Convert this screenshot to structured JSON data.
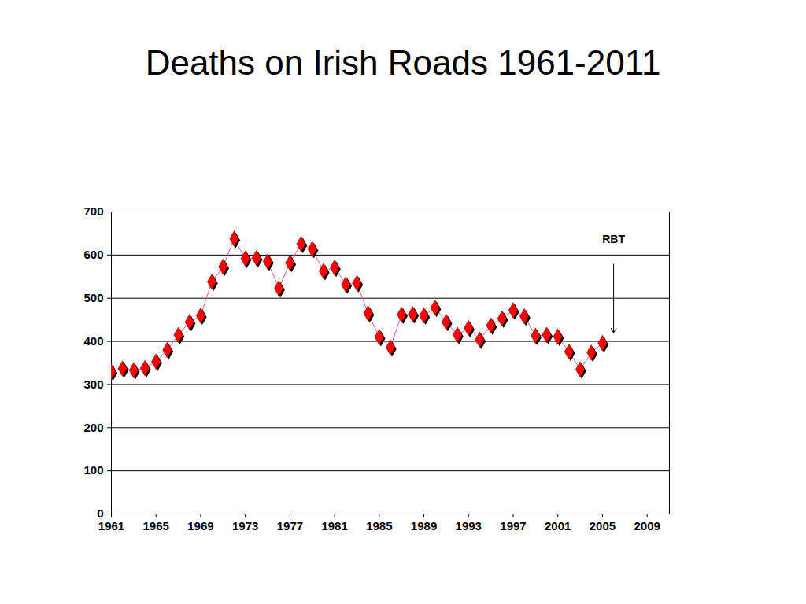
{
  "chart_data": {
    "type": "line",
    "title": "Deaths on Irish Roads 1961-2011",
    "x": [
      1961,
      1962,
      1963,
      1964,
      1965,
      1966,
      1967,
      1968,
      1969,
      1970,
      1971,
      1972,
      1973,
      1974,
      1975,
      1976,
      1977,
      1978,
      1979,
      1980,
      1981,
      1982,
      1983,
      1984,
      1985,
      1986,
      1987,
      1988,
      1989,
      1990,
      1991,
      1992,
      1993,
      1994,
      1995,
      1996,
      1997,
      1998,
      1999,
      2000,
      2001,
      2002,
      2003,
      2004,
      2005
    ],
    "values": [
      330,
      337,
      333,
      338,
      353,
      380,
      415,
      445,
      460,
      538,
      573,
      638,
      592,
      593,
      585,
      523,
      582,
      626,
      614,
      563,
      571,
      532,
      535,
      465,
      410,
      386,
      462,
      463,
      460,
      478,
      445,
      415,
      431,
      404,
      437,
      453,
      472,
      458,
      413,
      415,
      411,
      376,
      335,
      374,
      396
    ],
    "color": "#ff0000",
    "marker": "diamond",
    "xlim": [
      1961,
      2011
    ],
    "xticks": [
      1961,
      1965,
      1969,
      1973,
      1977,
      1981,
      1985,
      1989,
      1993,
      1997,
      2001,
      2005,
      2009
    ],
    "ylim": [
      0,
      700
    ],
    "yticks": [
      0,
      100,
      200,
      300,
      400,
      500,
      600,
      700
    ],
    "grid": true,
    "annotations": [
      {
        "text": "RBT",
        "x": 2006,
        "text_y": 637,
        "arrow_from": 579,
        "arrow_to": 420
      }
    ]
  }
}
